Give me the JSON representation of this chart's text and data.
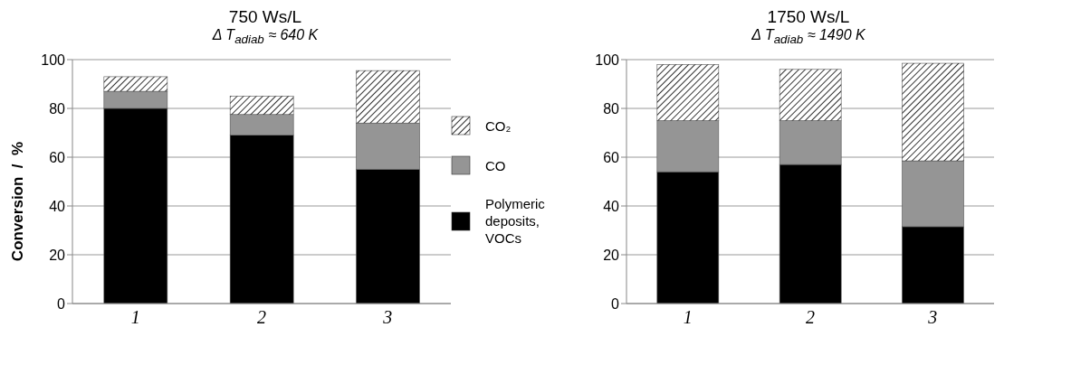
{
  "chart_data": [
    {
      "type": "bar",
      "title": "750 Ws/L",
      "subtitle": "Δ T$_{adiab}$ ≈  640 K",
      "ylabel": "Conversion  /  %",
      "categories": [
        "1",
        "2",
        "3"
      ],
      "stacked": true,
      "ylim": [
        0,
        100
      ],
      "yticks": [
        0,
        20,
        40,
        60,
        80,
        100
      ],
      "grid": "y",
      "legend": "right",
      "series": [
        {
          "name": "Polymeric deposits, VOCs",
          "color": "#000000",
          "values": [
            80,
            69,
            55
          ]
        },
        {
          "name": "CO",
          "color": "#959595",
          "values": [
            7,
            8.5,
            19
          ]
        },
        {
          "name": "CO₂",
          "color": "#ffffff",
          "values": [
            6,
            7.5,
            21.5
          ]
        }
      ]
    },
    {
      "type": "bar",
      "title": "1750 Ws/L",
      "subtitle": "Δ T$_{adiab}$ ≈  1490 K",
      "categories": [
        "1",
        "2",
        "3"
      ],
      "stacked": true,
      "ylim": [
        0,
        100
      ],
      "yticks": [
        0,
        20,
        40,
        60,
        80,
        100
      ],
      "grid": "y",
      "series": [
        {
          "color": "#000000",
          "values": [
            54,
            57,
            31.5
          ]
        },
        {
          "color": "#959595",
          "values": [
            21,
            18,
            27
          ]
        },
        {
          "color": "#ffffff",
          "values": [
            23,
            21,
            40
          ]
        }
      ]
    }
  ]
}
